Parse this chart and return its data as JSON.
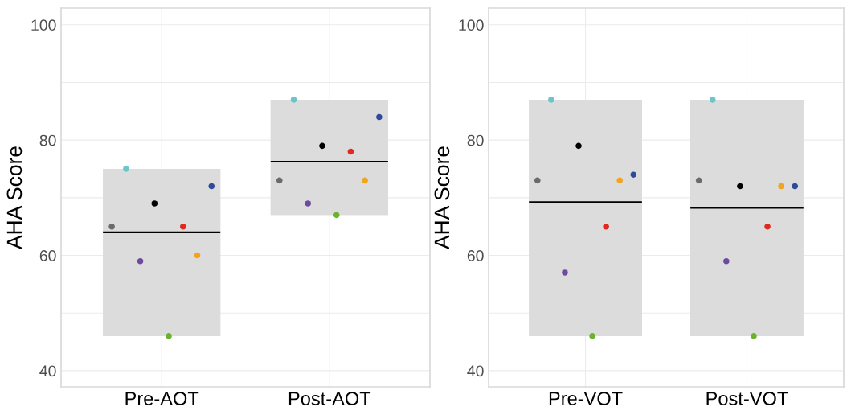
{
  "chart_data": [
    {
      "type": "box",
      "ylabel": "AHA Score",
      "categories": [
        "Pre-AOT",
        "Post-AOT"
      ],
      "color": "#dcdcdc",
      "boxes": [
        {
          "low": 46,
          "q1": 46,
          "median": 64,
          "q3": 75,
          "high": 75
        },
        {
          "low": 67,
          "q1": 67,
          "median": 76.25,
          "q3": 87,
          "high": 87
        }
      ],
      "ylim": [
        37.2,
        102.9
      ],
      "yticks": [
        40,
        {
          "value": 50,
          "label": null
        },
        60,
        {
          "value": 70,
          "label": null
        },
        80,
        {
          "value": 90,
          "label": null
        },
        100
      ],
      "grid": true,
      "marker": "circle",
      "series": [
        {
          "type": "scatter",
          "color": "#6b6b6b",
          "x": [
            "Pre-AOT",
            "Post-AOT"
          ],
          "values": [
            65,
            73
          ]
        },
        {
          "type": "scatter",
          "color": "#6cc5c9",
          "x": [
            "Pre-AOT",
            "Post-AOT"
          ],
          "values": [
            75,
            87
          ]
        },
        {
          "type": "scatter",
          "color": "#6e4a9e",
          "x": [
            "Pre-AOT",
            "Post-AOT"
          ],
          "values": [
            59,
            69
          ]
        },
        {
          "type": "scatter",
          "color": "#000000",
          "x": [
            "Pre-AOT",
            "Post-AOT"
          ],
          "values": [
            69,
            79
          ]
        },
        {
          "type": "scatter",
          "color": "#6ab42d",
          "x": [
            "Pre-AOT",
            "Post-AOT"
          ],
          "values": [
            46,
            67
          ]
        },
        {
          "type": "scatter",
          "color": "#e02a20",
          "x": [
            "Pre-AOT",
            "Post-AOT"
          ],
          "values": [
            65,
            78
          ]
        },
        {
          "type": "scatter",
          "color": "#f2a51c",
          "x": [
            "Pre-AOT",
            "Post-AOT"
          ],
          "values": [
            60,
            73
          ]
        },
        {
          "type": "scatter",
          "color": "#2d4b9b",
          "x": [
            "Pre-AOT",
            "Post-AOT"
          ],
          "values": [
            72,
            84
          ]
        }
      ]
    },
    {
      "type": "box",
      "ylabel": "AHA Score",
      "categories": [
        "Pre-VOT",
        "Post-VOT"
      ],
      "color": "#dcdcdc",
      "boxes": [
        {
          "low": 46,
          "q1": 46,
          "median": 69.25,
          "q3": 87,
          "high": 87
        },
        {
          "low": 46,
          "q1": 46,
          "median": 68.25,
          "q3": 87,
          "high": 87
        }
      ],
      "ylim": [
        37.2,
        102.9
      ],
      "yticks": [
        40,
        {
          "value": 50,
          "label": null
        },
        60,
        {
          "value": 70,
          "label": null
        },
        80,
        {
          "value": 90,
          "label": null
        },
        100
      ],
      "grid": true,
      "marker": "circle",
      "series": [
        {
          "type": "scatter",
          "color": "#6b6b6b",
          "x": [
            "Pre-VOT",
            "Post-VOT"
          ],
          "values": [
            73,
            73
          ]
        },
        {
          "type": "scatter",
          "color": "#6cc5c9",
          "x": [
            "Pre-VOT",
            "Post-VOT"
          ],
          "values": [
            87,
            87
          ]
        },
        {
          "type": "scatter",
          "color": "#6e4a9e",
          "x": [
            "Pre-VOT",
            "Post-VOT"
          ],
          "values": [
            57,
            59
          ]
        },
        {
          "type": "scatter",
          "color": "#000000",
          "x": [
            "Pre-VOT",
            "Post-VOT"
          ],
          "values": [
            79,
            72
          ]
        },
        {
          "type": "scatter",
          "color": "#6ab42d",
          "x": [
            "Pre-VOT",
            "Post-VOT"
          ],
          "values": [
            46,
            46
          ]
        },
        {
          "type": "scatter",
          "color": "#e02a20",
          "x": [
            "Pre-VOT",
            "Post-VOT"
          ],
          "values": [
            65,
            65
          ]
        },
        {
          "type": "scatter",
          "color": "#f2a51c",
          "x": [
            "Pre-VOT",
            "Post-VOT"
          ],
          "values": [
            73,
            72
          ]
        },
        {
          "type": "scatter",
          "color": "#2d4b9b",
          "x": [
            "Pre-VOT",
            "Post-VOT"
          ],
          "values": [
            74,
            72
          ]
        }
      ]
    }
  ]
}
